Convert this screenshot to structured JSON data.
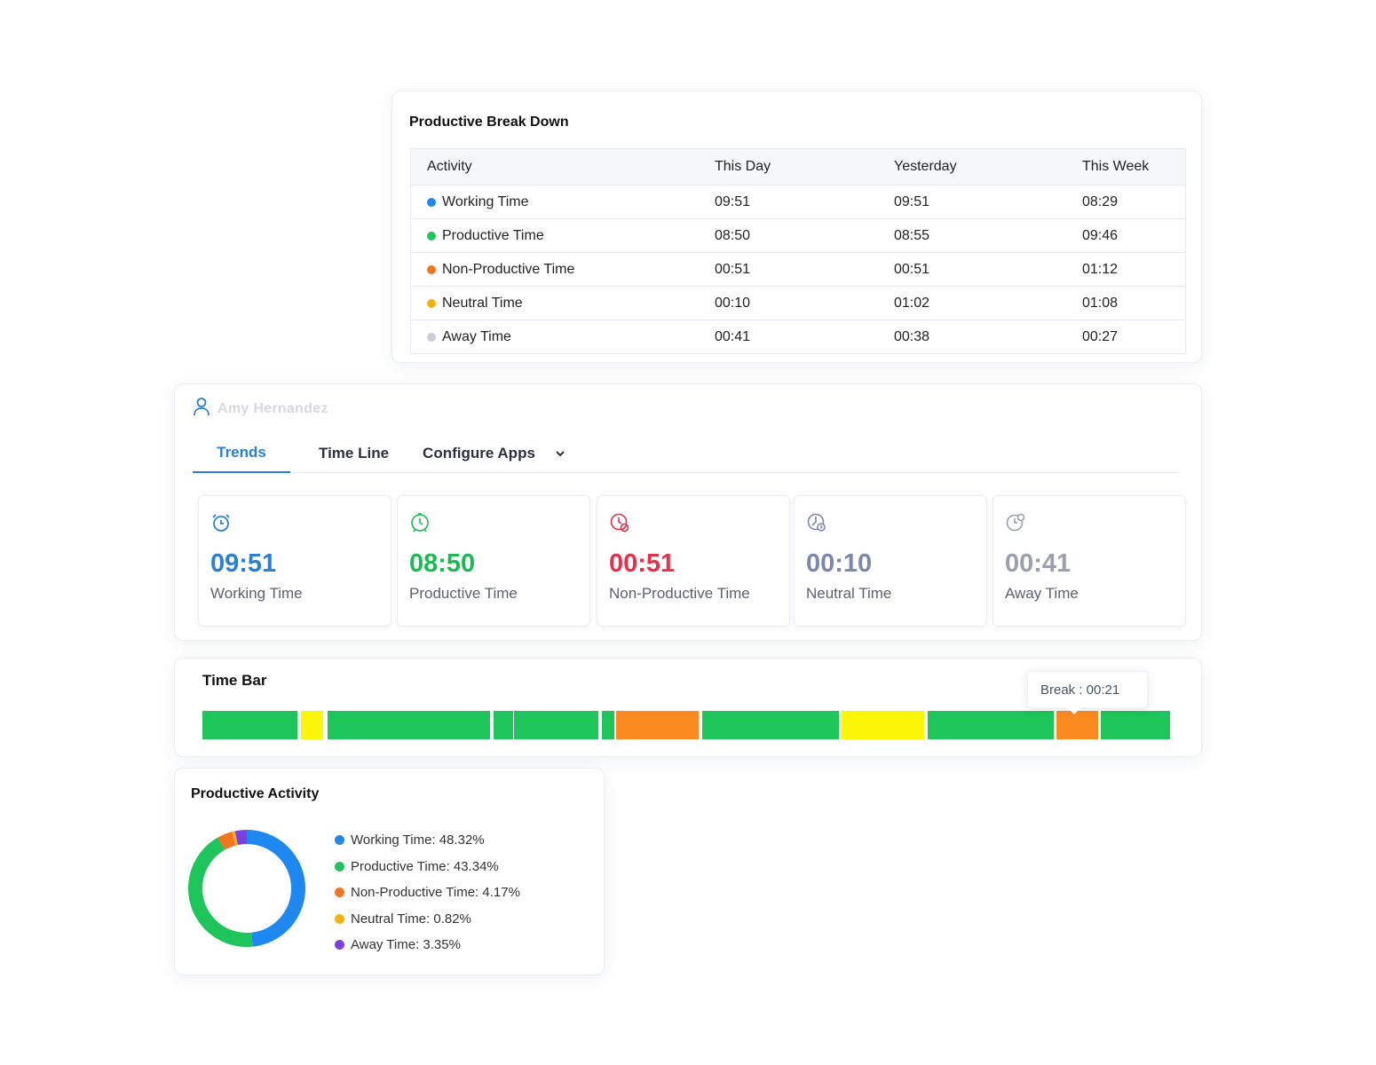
{
  "breakdown": {
    "title": "Productive Break Down",
    "headers": [
      "Activity",
      "This Day",
      "Yesterday",
      "This Week"
    ],
    "rows": [
      {
        "activity": "Working Time",
        "color": "#1e88f0",
        "this_day": "09:51",
        "yesterday": "09:51",
        "this_week": "08:29"
      },
      {
        "activity": "Productive Time",
        "color": "#1ec55a",
        "this_day": "08:50",
        "yesterday": "08:55",
        "this_week": "09:46"
      },
      {
        "activity": "Non-Productive Time",
        "color": "#f47520",
        "this_day": "00:51",
        "yesterday": "00:51",
        "this_week": "01:12"
      },
      {
        "activity": "Neutral Time",
        "color": "#f3b40c",
        "this_day": "00:10",
        "yesterday": "01:02",
        "this_week": "01:08"
      },
      {
        "activity": "Away Time",
        "color": "#c9ced8",
        "this_day": "00:41",
        "yesterday": "00:38",
        "this_week": "00:27"
      }
    ]
  },
  "employee": {
    "name": "Amy Hernandez",
    "user_icon": "user-icon",
    "tabs": [
      "Trends",
      "Time Line",
      "Configure Apps"
    ],
    "active_tab": "Trends",
    "stats": [
      {
        "value": "09:51",
        "label": "Working Time",
        "color": "#2a7fd6",
        "icon": "alarm-clock-icon"
      },
      {
        "value": "08:50",
        "label": "Productive Time",
        "color": "#1db954",
        "icon": "productive-clock-icon"
      },
      {
        "value": "00:51",
        "label": "Non-Productive Time",
        "color": "#e8304a",
        "icon": "non-productive-clock-icon"
      },
      {
        "value": "00:10",
        "label": "Neutral Time",
        "color": "#7d86ac",
        "icon": "neutral-clock-icon"
      },
      {
        "value": "00:41",
        "label": "Away Time",
        "color": "#9aa0ae",
        "icon": "away-clock-icon"
      }
    ]
  },
  "timebar": {
    "title": "Time Bar",
    "tooltip": "Break : 00:21",
    "colors": {
      "productive": "#1ec55a",
      "neutral": "#fbf608",
      "break": "#fb8a21"
    },
    "segments": [
      {
        "type": "productive",
        "start": 0.0,
        "end": 0.0985
      },
      {
        "type": "neutral",
        "start": 0.1022,
        "end": 0.1244
      },
      {
        "type": "productive",
        "start": 0.129,
        "end": 0.2968
      },
      {
        "type": "productive",
        "start": 0.3006,
        "end": 0.3207
      },
      {
        "type": "productive",
        "start": 0.3224,
        "end": 0.4095
      },
      {
        "type": "productive",
        "start": 0.4125,
        "end": 0.4254
      },
      {
        "type": "break",
        "start": 0.4272,
        "end": 0.5129
      },
      {
        "type": "productive",
        "start": 0.5161,
        "end": 0.6576
      },
      {
        "type": "neutral",
        "start": 0.6606,
        "end": 0.7459
      },
      {
        "type": "productive",
        "start": 0.7494,
        "end": 0.8798
      },
      {
        "type": "break",
        "start": 0.8829,
        "end": 0.9258
      },
      {
        "type": "productive",
        "start": 0.9284,
        "end": 1.0
      }
    ]
  },
  "activity": {
    "title": "Productive Activity",
    "items": [
      {
        "label": "Working Time: 48.32%",
        "color": "#1e88f0",
        "percent": 48.32
      },
      {
        "label": "Productive Time: 43.34%",
        "color": "#1ec55a",
        "percent": 43.34
      },
      {
        "label": "Non-Productive Time: 4.17%",
        "color": "#f47520",
        "percent": 4.17
      },
      {
        "label": "Neutral Time: 0.82%",
        "color": "#f3b40c",
        "percent": 0.82
      },
      {
        "label": "Away Time: 3.35%",
        "color": "#7b3fe4",
        "percent": 3.35
      }
    ]
  }
}
